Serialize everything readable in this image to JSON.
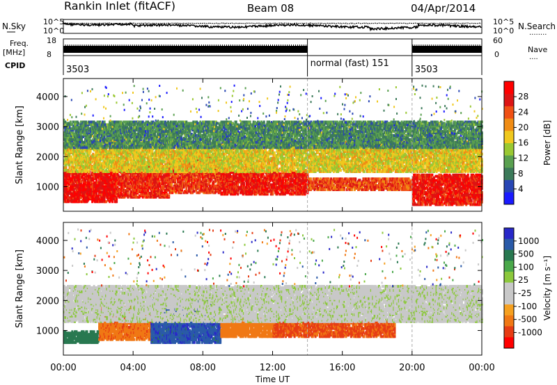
{
  "header": {
    "station": "Rankin Inlet (fitACF)",
    "beam": "Beam 08",
    "date": "04/Apr/2014"
  },
  "aux_labels": {
    "nsky": "N.Sky",
    "freq_top": "Freq.",
    "freq_unit": "[MHz]",
    "cpid": "CPID",
    "nsearch": "N.Search",
    "nave": "Nave",
    "nsky_ticks": [
      "10^5",
      "10^0"
    ],
    "nsearch_ticks": [
      "10^5",
      "10^0"
    ],
    "freq_ticks": [
      "18",
      "8"
    ],
    "nave_ticks": [
      "60",
      "0"
    ]
  },
  "cpid_segments": [
    {
      "label": "3503",
      "start_h": 0,
      "end_h": 14
    },
    {
      "label": "normal (fast) 151",
      "start_h": 14,
      "end_h": 20
    },
    {
      "label": "3503",
      "start_h": 20,
      "end_h": 24
    }
  ],
  "colors": {
    "power": [
      "#1a1aff",
      "#2846b4",
      "#3c7a5a",
      "#5aa050",
      "#9ac832",
      "#f0c81e",
      "#f08c14",
      "#f05014",
      "#dc1414",
      "#ff0000"
    ],
    "velocity": [
      "#2828c8",
      "#2a5aa8",
      "#287850",
      "#4aa84a",
      "#8cc83c",
      "#c8c8c8",
      "#c8c8c8",
      "#f5a020",
      "#f07814",
      "#e63c14",
      "#ff0000"
    ],
    "gray": "#c8c8c8"
  },
  "chart_data": [
    {
      "type": "heatmap",
      "name": "power",
      "xlabel": "Time UT",
      "ylabel": "Slant Range [km]",
      "xlim": [
        0,
        24
      ],
      "ylim": [
        180,
        4600
      ],
      "xticks": [
        "00:00",
        "04:00",
        "08:00",
        "12:00",
        "16:00",
        "20:00",
        "00:00"
      ],
      "yticks": [
        1000,
        2000,
        3000,
        4000
      ],
      "colorbar": {
        "label": "Power [dB]",
        "ticks": [
          4,
          8,
          12,
          16,
          20,
          24,
          28
        ],
        "range": [
          0,
          30
        ]
      },
      "dashed_lines_h": [
        14,
        20
      ],
      "bands": [
        {
          "t": [
            0,
            3
          ],
          "r": [
            500,
            1500
          ],
          "level": 28
        },
        {
          "t": [
            3,
            6
          ],
          "r": [
            650,
            1750
          ],
          "level": 26
        },
        {
          "t": [
            6,
            9
          ],
          "r": [
            800,
            2100
          ],
          "level": 25
        },
        {
          "t": [
            9,
            14
          ],
          "r": [
            750,
            1500
          ],
          "level": 27
        },
        {
          "t": [
            14,
            20
          ],
          "r": [
            900,
            1300
          ],
          "level": 24
        },
        {
          "t": [
            20,
            24
          ],
          "r": [
            400,
            1400
          ],
          "level": 27
        },
        {
          "t": [
            0,
            24
          ],
          "r": [
            1500,
            2500
          ],
          "level": 16
        },
        {
          "t": [
            0,
            24
          ],
          "r": [
            2300,
            3200
          ],
          "level": 8
        }
      ]
    },
    {
      "type": "heatmap",
      "name": "velocity",
      "xlabel": "Time UT",
      "ylabel": "Slant Range [km]",
      "xlim": [
        0,
        24
      ],
      "ylim": [
        180,
        4600
      ],
      "xticks": [
        "00:00",
        "04:00",
        "08:00",
        "12:00",
        "16:00",
        "20:00",
        "00:00"
      ],
      "yticks": [
        1000,
        2000,
        3000,
        4000
      ],
      "colorbar": {
        "label": "Velocity [m s⁻¹]",
        "ticks": [
          "1000",
          "500",
          "100",
          "25",
          "-25",
          "-100",
          "-500",
          "-1000"
        ]
      },
      "dashed_lines_h": [
        14,
        20
      ],
      "bands": [
        {
          "t": [
            0,
            2
          ],
          "r": [
            600,
            1000
          ],
          "value": 300
        },
        {
          "t": [
            2,
            5
          ],
          "r": [
            700,
            1800
          ],
          "value": -400
        },
        {
          "t": [
            5,
            9
          ],
          "r": [
            600,
            2000
          ],
          "value": 800
        },
        {
          "t": [
            9,
            12
          ],
          "r": [
            800,
            1500
          ],
          "value": -200
        },
        {
          "t": [
            12,
            19
          ],
          "r": [
            800,
            1300
          ],
          "value": -600
        },
        {
          "t": [
            0,
            24
          ],
          "r": [
            1300,
            2500
          ],
          "value": 0
        }
      ]
    }
  ]
}
